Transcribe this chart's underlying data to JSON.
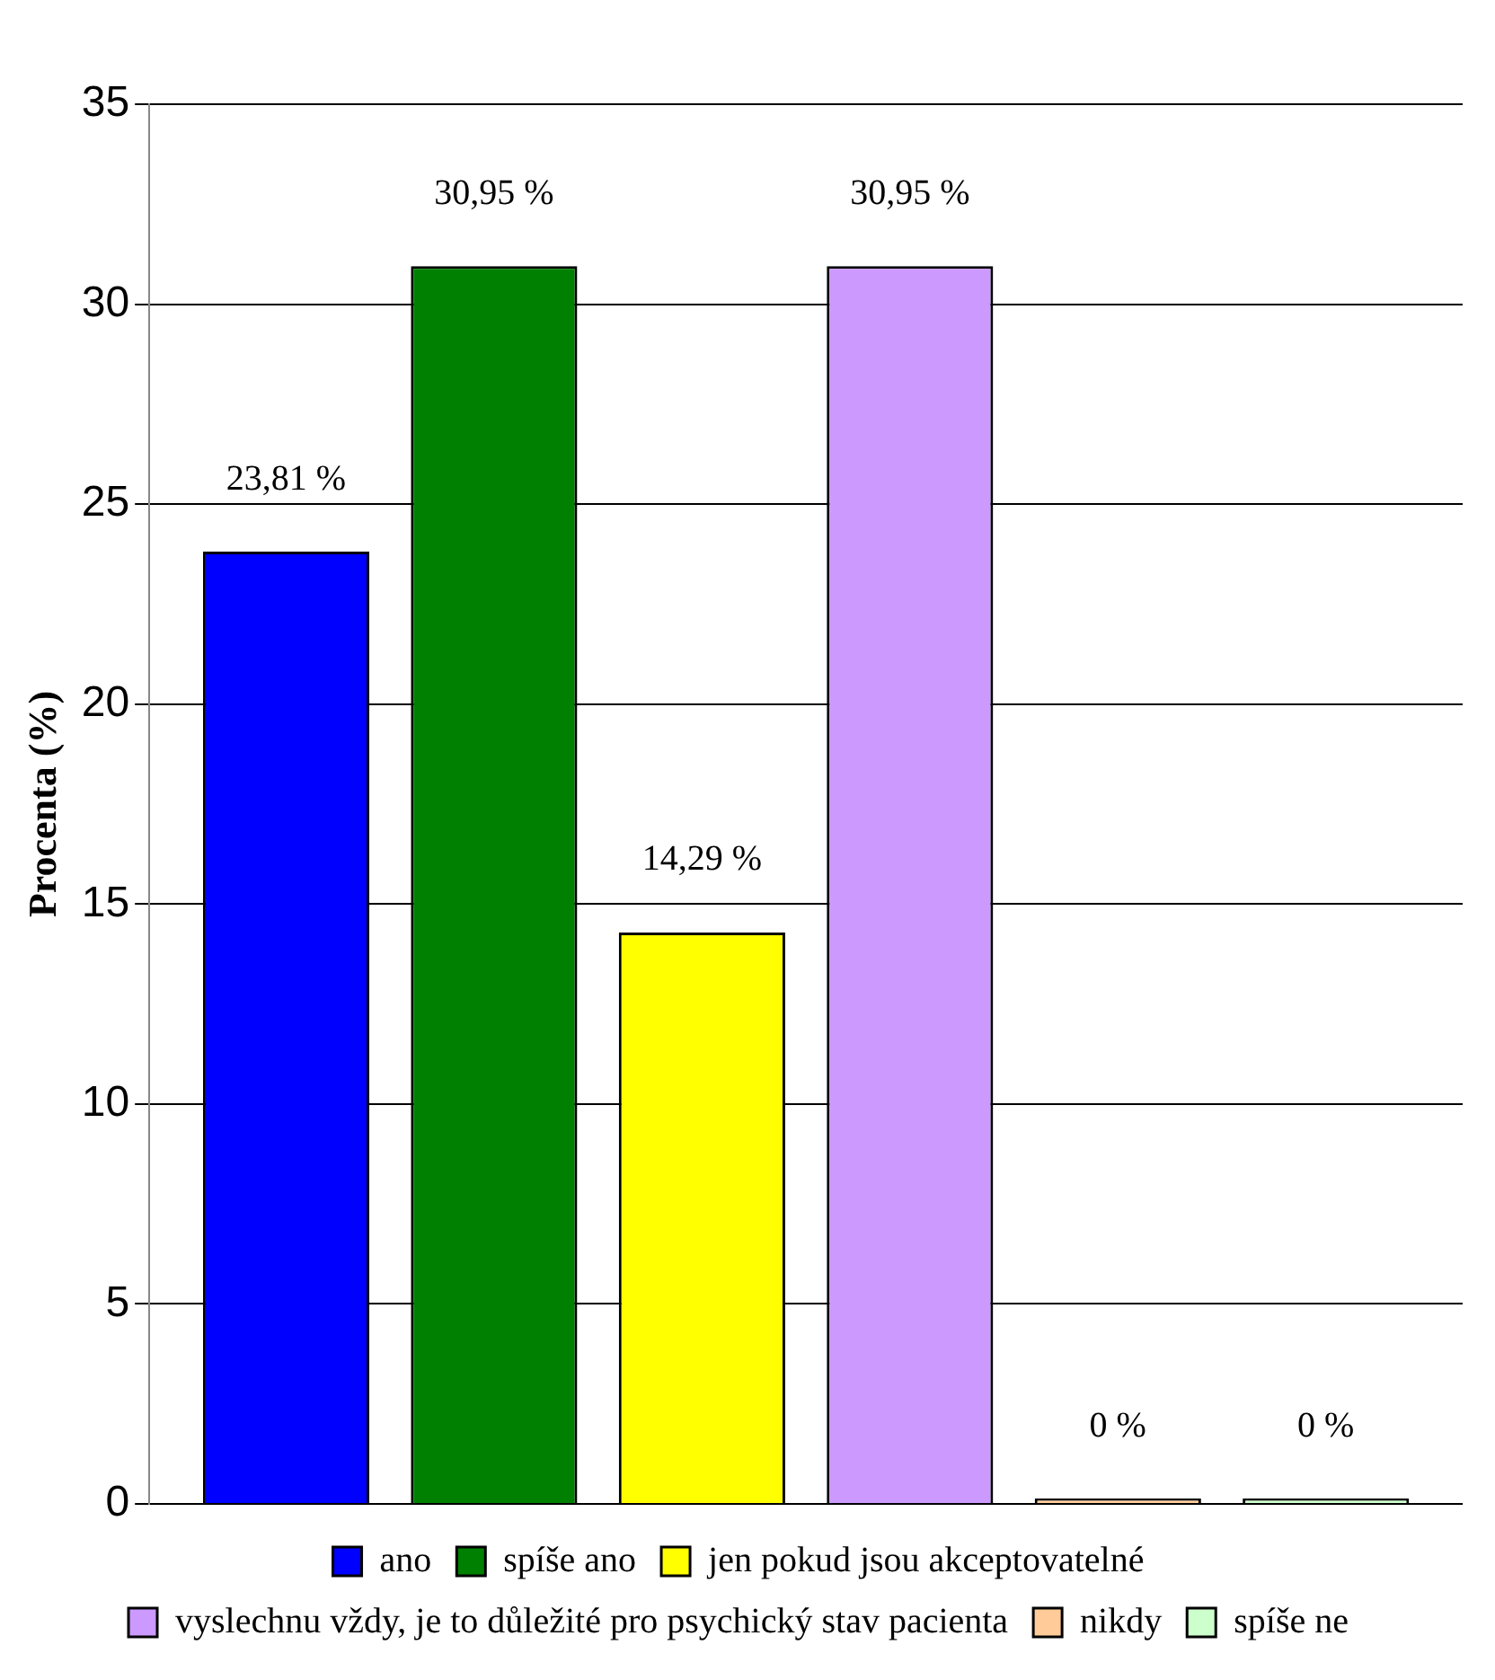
{
  "chart_data": {
    "type": "bar",
    "ylabel": "Procenta (%)",
    "categories": [
      null
    ],
    "series": [
      {
        "name": "ano",
        "color": "#0000ff",
        "values": [
          23.81
        ],
        "value_labels": [
          "23,81 %"
        ]
      },
      {
        "name": "spíše ano",
        "color": "#008000",
        "values": [
          30.95
        ],
        "value_labels": [
          "30,95 %"
        ]
      },
      {
        "name": "jen pokud jsou akceptovatelné",
        "color": "#ffff00",
        "values": [
          14.29
        ],
        "value_labels": [
          "14,29 %"
        ]
      },
      {
        "name": "vyslechnu vždy, je to důležité pro psychický stav pacienta",
        "color": "#cc99ff",
        "values": [
          30.95
        ],
        "value_labels": [
          "30,95 %"
        ]
      },
      {
        "name": "nikdy",
        "color": "#ffcc99",
        "values": [
          0
        ],
        "value_labels": [
          "0 %"
        ]
      },
      {
        "name": "spíše ne",
        "color": "#ccffcc",
        "values": [
          0
        ],
        "value_labels": [
          "0 %"
        ]
      }
    ],
    "ylim": [
      0,
      35
    ],
    "yticks": [
      0,
      5,
      10,
      15,
      20,
      25,
      30,
      35
    ],
    "grid": "y",
    "legend": "bottom"
  }
}
